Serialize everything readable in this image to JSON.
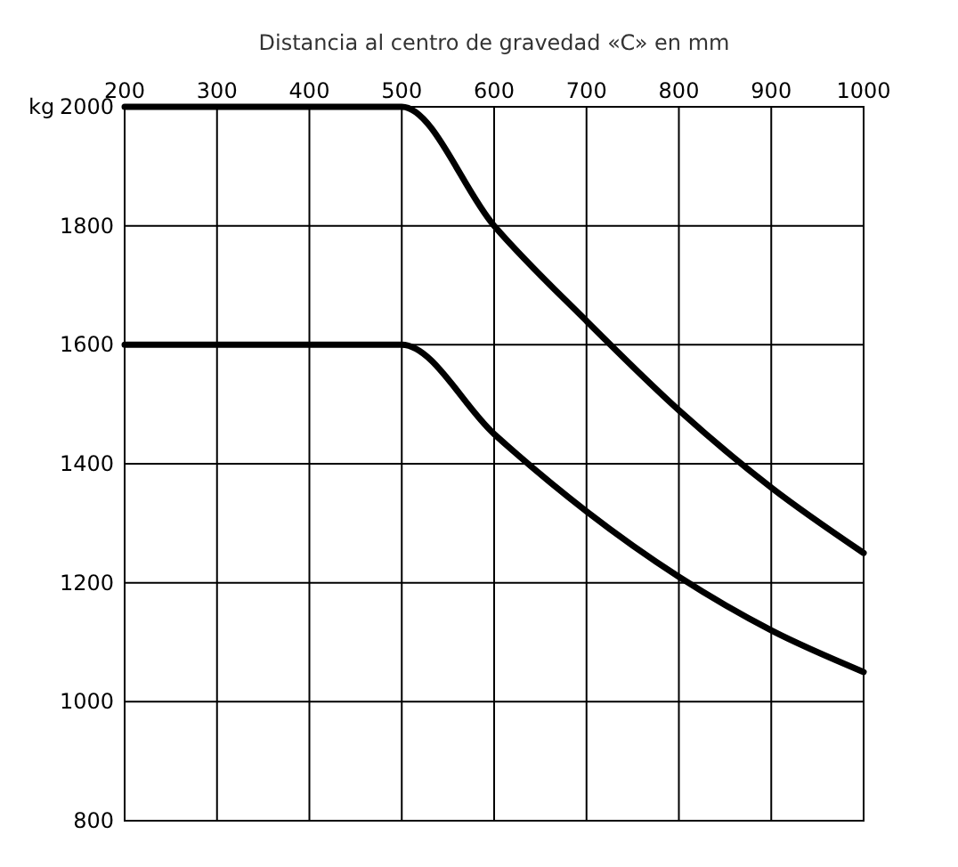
{
  "chart_data": {
    "type": "line",
    "xlabel": "Distancia al centro de gravedad «C» en mm",
    "ylabel": "kg",
    "xlim": [
      200,
      1000
    ],
    "xticks": [
      200,
      300,
      400,
      500,
      600,
      700,
      800,
      900,
      1000
    ],
    "ylim": [
      800,
      2000
    ],
    "yticks": [
      800,
      1000,
      1200,
      1400,
      1600,
      1800,
      2000
    ],
    "grid": true,
    "line_style": "solid",
    "marker": "none",
    "series": [
      {
        "color": "#000000",
        "x": [
          200,
          500,
          600,
          700,
          800,
          900,
          1000
        ],
        "values": [
          2000,
          2000,
          1800,
          1640,
          1490,
          1360,
          1250
        ]
      },
      {
        "color": "#000000",
        "x": [
          200,
          500,
          600,
          700,
          800,
          900,
          1000
        ],
        "values": [
          1600,
          1600,
          1450,
          1320,
          1210,
          1120,
          1050
        ]
      }
    ]
  }
}
